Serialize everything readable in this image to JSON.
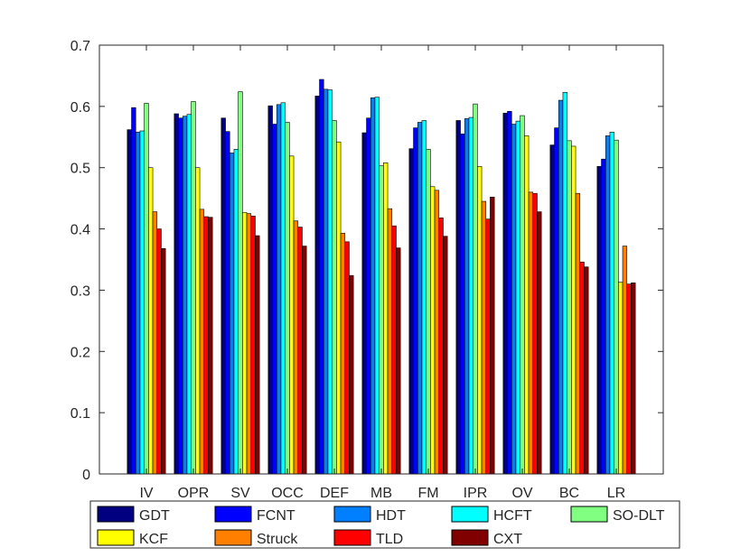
{
  "chart_data": {
    "type": "bar",
    "title": "",
    "xlabel": "",
    "ylabel": "",
    "ylim": [
      0,
      0.7
    ],
    "yticks": [
      0,
      0.1,
      0.2,
      0.3,
      0.4,
      0.5,
      0.6,
      0.7
    ],
    "ytick_labels": [
      "0",
      "0.1",
      "0.2",
      "0.3",
      "0.4",
      "0.5",
      "0.6",
      "0.7"
    ],
    "grid": false,
    "legend_position": "bottom",
    "categories": [
      "IV",
      "OPR",
      "SV",
      "OCC",
      "DEF",
      "MB",
      "FM",
      "IPR",
      "OV",
      "BC",
      "LR"
    ],
    "series": [
      {
        "name": "GDT",
        "color": "#000080",
        "values": [
          0.562,
          0.588,
          0.581,
          0.601,
          0.617,
          0.557,
          0.531,
          0.577,
          0.589,
          0.537,
          0.502
        ]
      },
      {
        "name": "FCNT",
        "color": "#0000ff",
        "values": [
          0.598,
          0.581,
          0.559,
          0.571,
          0.644,
          0.581,
          0.565,
          0.555,
          0.592,
          0.565,
          0.514
        ]
      },
      {
        "name": "HDT",
        "color": "#0080ff",
        "values": [
          0.558,
          0.584,
          0.524,
          0.603,
          0.628,
          0.614,
          0.574,
          0.58,
          0.571,
          0.61,
          0.552
        ]
      },
      {
        "name": "HCFT",
        "color": "#00ffff",
        "values": [
          0.56,
          0.587,
          0.53,
          0.606,
          0.627,
          0.615,
          0.577,
          0.582,
          0.576,
          0.623,
          0.558
        ]
      },
      {
        "name": "SO-DLT",
        "color": "#80ff80",
        "values": [
          0.605,
          0.608,
          0.624,
          0.574,
          0.577,
          0.503,
          0.53,
          0.604,
          0.585,
          0.544,
          0.545
        ]
      },
      {
        "name": "KCF",
        "color": "#ffff00",
        "values": [
          0.5,
          0.5,
          0.427,
          0.519,
          0.542,
          0.508,
          0.469,
          0.502,
          0.552,
          0.535,
          0.313
        ]
      },
      {
        "name": "Struck",
        "color": "#ff8000",
        "values": [
          0.428,
          0.432,
          0.425,
          0.413,
          0.393,
          0.433,
          0.463,
          0.445,
          0.46,
          0.458,
          0.372
        ]
      },
      {
        "name": "TLD",
        "color": "#ff0000",
        "values": [
          0.4,
          0.42,
          0.421,
          0.403,
          0.379,
          0.405,
          0.418,
          0.416,
          0.458,
          0.346,
          0.31
        ]
      },
      {
        "name": "CXT",
        "color": "#800000",
        "values": [
          0.368,
          0.419,
          0.389,
          0.372,
          0.324,
          0.369,
          0.388,
          0.452,
          0.428,
          0.338,
          0.312
        ]
      }
    ]
  }
}
